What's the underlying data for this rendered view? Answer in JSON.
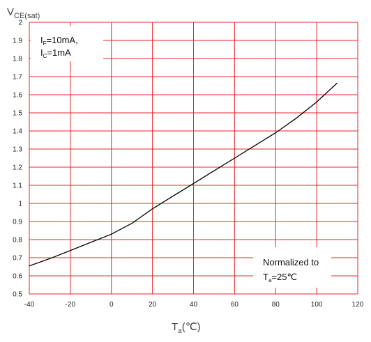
{
  "chart_data": {
    "type": "line",
    "ylabel": {
      "main": "V",
      "sub": "CE(sat)"
    },
    "xlabel": {
      "main": "T",
      "sub": "a",
      "unit": "(℃)"
    },
    "xlim": [
      -40,
      120
    ],
    "ylim": [
      0.5,
      2.0
    ],
    "x_ticks": [
      "-40",
      "-20",
      "0",
      "20",
      "40",
      "60",
      "80",
      "100",
      "120"
    ],
    "y_ticks": [
      "0.5",
      "0.6",
      "0.7",
      "0.8",
      "0.9",
      "1",
      "1.1",
      "1.2",
      "1.3",
      "1.4",
      "1.5",
      "1.6",
      "1.7",
      "1.8",
      "1.9",
      "2"
    ],
    "grid": true,
    "grid_color": "#e8262b",
    "line_color": "#000000",
    "series": [
      {
        "x": [
          -40,
          -30,
          -20,
          -10,
          0,
          10,
          20,
          30,
          40,
          50,
          60,
          70,
          80,
          90,
          100,
          110
        ],
        "values": [
          0.655,
          0.695,
          0.74,
          0.785,
          0.83,
          0.89,
          0.97,
          1.04,
          1.11,
          1.18,
          1.25,
          1.32,
          1.39,
          1.47,
          1.56,
          1.665
        ]
      }
    ],
    "annotations": {
      "conditions": [
        {
          "main": "I",
          "sub": "F",
          "rest": "=10mA,"
        },
        {
          "main": "I",
          "sub": "C",
          "rest": "=1mA"
        }
      ],
      "normalized": {
        "line1": "Normalized to",
        "line2": {
          "main": "T",
          "sub": "a",
          "rest": "=25℃"
        }
      }
    }
  }
}
